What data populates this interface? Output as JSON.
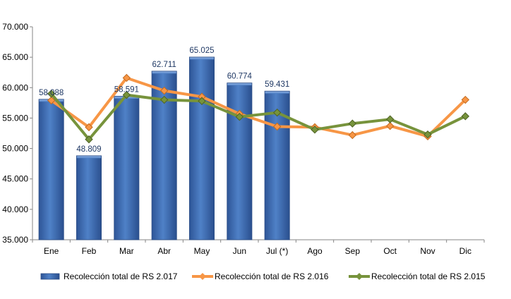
{
  "chart_data": {
    "type": "bar",
    "categories": [
      "Ene",
      "Feb",
      "Mar",
      "Abr",
      "May",
      "Jun",
      "Jul (*)",
      "Ago",
      "Sep",
      "Oct",
      "Nov",
      "Dic"
    ],
    "ylim": [
      35000,
      70000
    ],
    "y_ticks": [
      35000,
      40000,
      45000,
      50000,
      55000,
      60000,
      65000,
      70000
    ],
    "y_tick_labels": [
      "35.000",
      "40.000",
      "45.000",
      "50.000",
      "55.000",
      "60.000",
      "65.000",
      "70.000"
    ],
    "grid": false,
    "legend_position": "bottom",
    "series": [
      {
        "name": "Recolección total de RS 2.017",
        "type": "bar",
        "color": "#4472c4",
        "values": [
          58088,
          48809,
          58591,
          62711,
          65025,
          60774,
          59431,
          null,
          null,
          null,
          null,
          null
        ],
        "data_labels": [
          "58.088",
          "48.809",
          "58.591",
          "62.711",
          "65.025",
          "60.774",
          "59.431",
          "",
          "",
          "",
          "",
          ""
        ]
      },
      {
        "name": "Recolección total de RS 2.016",
        "type": "line",
        "color": "#f79646",
        "values": [
          57900,
          53500,
          61600,
          59500,
          58500,
          55700,
          53600,
          53500,
          52200,
          53700,
          52000,
          58000
        ]
      },
      {
        "name": "Recolección total de RS 2.015",
        "type": "line",
        "color": "#77933c",
        "values": [
          59000,
          51500,
          58800,
          58000,
          57800,
          55200,
          55900,
          53100,
          54100,
          54800,
          52300,
          55300
        ]
      }
    ]
  }
}
